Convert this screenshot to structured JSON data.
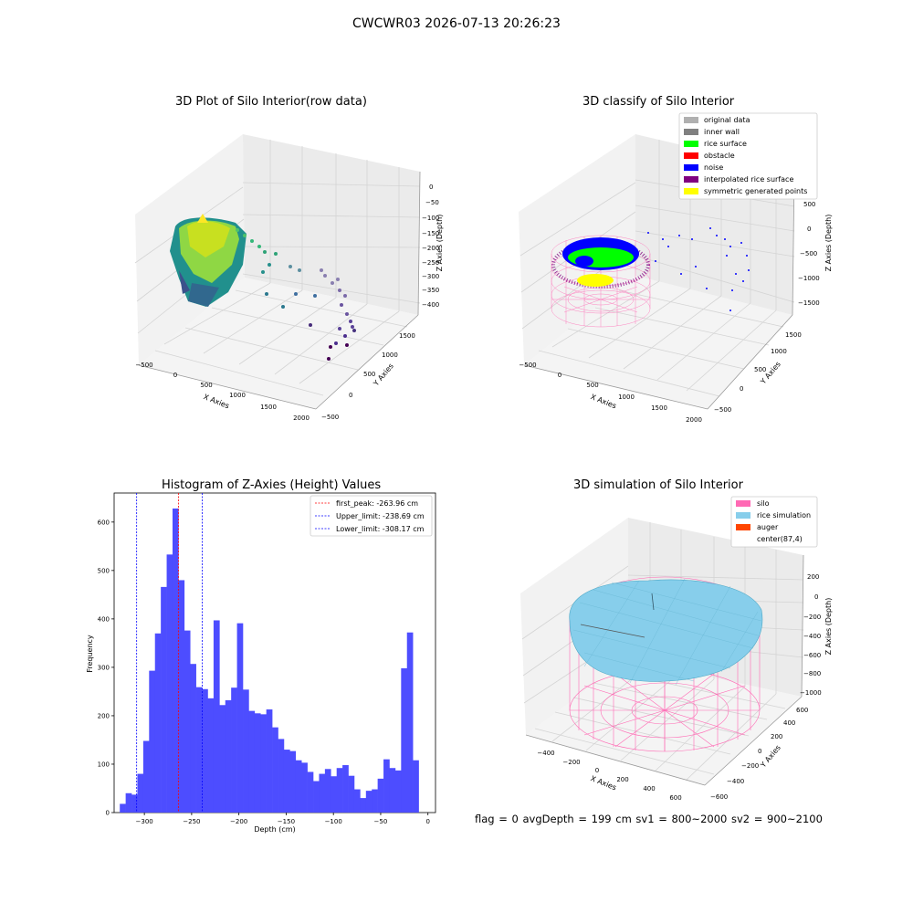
{
  "suptitle": "CWCWR03 2026-07-13 20:26:23",
  "footer": "flag = 0     avgDepth = 199 cm  sv1 = 800~2000  sv2 = 900~2100",
  "colors": {
    "silo": "#ff69b4",
    "rice_simulation": "#87ceeb",
    "auger": "#ff4500",
    "original_data": "#b0b0b0",
    "inner_wall": "#808080",
    "rice_surface": "#00ff00",
    "obstacle": "#ff0000",
    "noise": "#0000ff",
    "interpolated_rice_surface": "#800080",
    "symmetric_generated_points": "#ffff00",
    "histogram_bar": "#4d4dff",
    "first_peak_line": "#ff0000",
    "limit_line": "#0000ff"
  },
  "chart_data": [
    {
      "type": "scatter",
      "projection": "3d",
      "title": "3D Plot of Silo Interior(row data)",
      "xlabel": "X Axies",
      "ylabel": "Y Axies",
      "zlabel": "Z Axies (Depth)",
      "xticks": [
        "−500",
        "0",
        "500",
        "1000",
        "1500",
        "2000"
      ],
      "yticks": [
        "−500",
        "0",
        "500",
        "1000",
        "1500"
      ],
      "zticks": [
        "0",
        "−50",
        "−100",
        "−150",
        "−200",
        "−250",
        "−300",
        "−350",
        "−400"
      ],
      "colormap": "viridis"
    },
    {
      "type": "scatter",
      "projection": "3d",
      "title": "3D classify of Silo Interior",
      "xlabel": "X Axies",
      "ylabel": "Y Axies",
      "zlabel": "Z Axies (Depth)",
      "xticks": [
        "−500",
        "0",
        "500",
        "1000",
        "1500",
        "2000"
      ],
      "yticks": [
        "−500",
        "0",
        "500",
        "1000",
        "1500"
      ],
      "zticks": [
        "500",
        "0",
        "−500",
        "−1000",
        "−1500"
      ],
      "legend_position": "top-right",
      "legend": [
        {
          "label": "original data",
          "color": "#b0b0b0"
        },
        {
          "label": "inner wall",
          "color": "#808080"
        },
        {
          "label": "rice surface",
          "color": "#00ff00"
        },
        {
          "label": "obstacle",
          "color": "#ff0000"
        },
        {
          "label": "noise",
          "color": "#0000ff"
        },
        {
          "label": "interpolated rice surface",
          "color": "#800080"
        },
        {
          "label": "symmetric generated points",
          "color": "#ffff00"
        }
      ]
    },
    {
      "type": "bar",
      "title": "Histogram of Z-Axies (Height) Values",
      "xlabel": "Depth (cm)",
      "ylabel": "Frequency",
      "xlim": [
        -332,
        8
      ],
      "ylim": [
        0,
        660
      ],
      "bin_start": -326,
      "bin_width": 6.2,
      "values": [
        18,
        40,
        37,
        80,
        148,
        293,
        370,
        466,
        533,
        628,
        480,
        376,
        307,
        259,
        255,
        236,
        397,
        222,
        232,
        258,
        391,
        254,
        210,
        205,
        203,
        213,
        176,
        152,
        130,
        127,
        108,
        103,
        84,
        65,
        80,
        90,
        75,
        92,
        98,
        76,
        48,
        30,
        45,
        48,
        70,
        110,
        92,
        87,
        298,
        372,
        108
      ],
      "xticks": [
        -300,
        -250,
        -200,
        -150,
        -100,
        -50,
        0
      ],
      "yticks": [
        0,
        100,
        200,
        300,
        400,
        500,
        600
      ],
      "lines": [
        {
          "label": "first_peak: -263.96 cm",
          "x": -263.96,
          "color": "#ff0000"
        },
        {
          "label": "Upper_limit: -238.69 cm",
          "x": -238.69,
          "color": "#0000ff"
        },
        {
          "label": "Lower_limit: -308.17 cm",
          "x": -308.17,
          "color": "#0000ff"
        }
      ],
      "legend_position": "top-right"
    },
    {
      "type": "surface",
      "projection": "3d",
      "title": "3D simulation of Silo Interior",
      "xlabel": "X Axies",
      "ylabel": "Y Axies",
      "zlabel": "Z Axies (Depth)",
      "xticks": [
        "−400",
        "−200",
        "0",
        "200",
        "400",
        "600"
      ],
      "yticks": [
        "−600",
        "−400",
        "−200",
        "0",
        "200",
        "400",
        "600"
      ],
      "zticks": [
        "200",
        "0",
        "−200",
        "−400",
        "−600",
        "−800",
        "−1000"
      ],
      "legend_position": "top-right",
      "legend": [
        {
          "label": "silo",
          "color": "#ff69b4"
        },
        {
          "label": "rice simulation",
          "color": "#87ceeb"
        },
        {
          "label": "auger",
          "color": "#ff4500"
        },
        {
          "label": "center(87,4)",
          "color": "#ffffff"
        }
      ]
    }
  ]
}
